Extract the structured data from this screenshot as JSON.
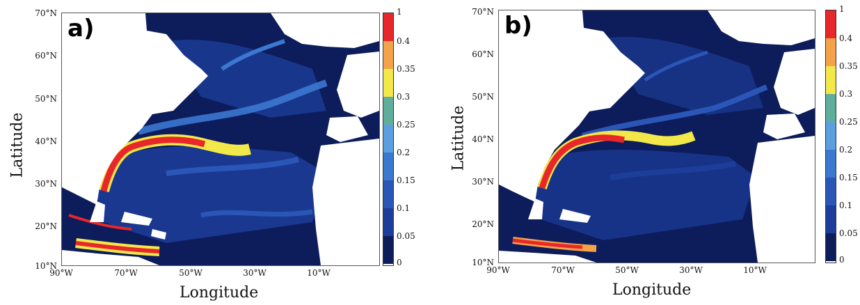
{
  "figure": {
    "panels": [
      {
        "id": "a",
        "tag": "a)",
        "xlabel": "Longitude",
        "ylabel": "Latitude",
        "lat_ticks": [
          "70°N",
          "60°N",
          "50°N",
          "40°N",
          "30°N",
          "20°N",
          "10°N"
        ],
        "lon_ticks": [
          "90°W",
          "70°W",
          "50°W",
          "30°W",
          "10°W"
        ]
      },
      {
        "id": "b",
        "tag": "b)",
        "xlabel": "Longitude",
        "ylabel": "Latitude",
        "lat_ticks": [
          "70°N",
          "60°N",
          "50°N",
          "40°N",
          "30°N",
          "20°N",
          "10°N"
        ],
        "lon_ticks": [
          "90°W",
          "70°W",
          "50°W",
          "30°W",
          "10°W"
        ]
      }
    ],
    "colorbar": {
      "labels": [
        "1",
        "0.4",
        "0.35",
        "0.3",
        "0.25",
        "0.2",
        "0.15",
        "0.1",
        "0.05",
        "0"
      ],
      "colors": [
        "#e8272a",
        "#f5a34a",
        "#f2e84a",
        "#5fae9c",
        "#5aa0e0",
        "#3b78d0",
        "#2a56b8",
        "#1d3d9a",
        "#0d1c5a"
      ]
    },
    "colors": {
      "land": "#ffffff",
      "ocean_low": "#0d1c5a",
      "ocean_mid": "#1d3d9a",
      "eddy": "#3b78d0",
      "front": "#e8272a"
    }
  }
}
